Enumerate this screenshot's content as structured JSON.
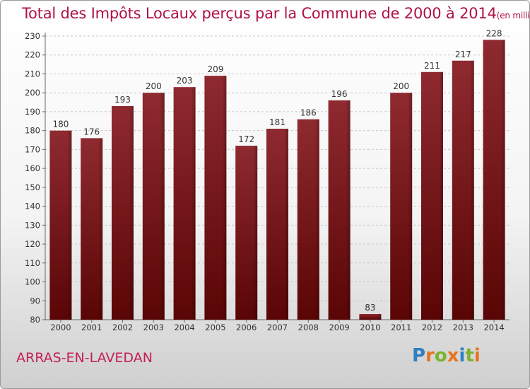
{
  "title": "Total des Impôts Locaux perçus par la Commune de 2000 à 2014",
  "unit": "(en milliers d'€)",
  "commune": "ARRAS-EN-LAVEDAN",
  "logo": {
    "text": "Proxiti",
    "letters": [
      {
        "char": "P",
        "color": "#2f7fc1"
      },
      {
        "char": "r",
        "color": "#e8731e"
      },
      {
        "char": "o",
        "color": "#7bb32e"
      },
      {
        "char": "x",
        "color": "#e8731e"
      },
      {
        "char": "i",
        "color": "#2f7fc1"
      },
      {
        "char": "t",
        "color": "#7bb32e"
      },
      {
        "char": "i",
        "color": "#e8731e"
      }
    ]
  },
  "chart_data": {
    "type": "bar",
    "categories": [
      "2000",
      "2001",
      "2002",
      "2003",
      "2004",
      "2005",
      "2006",
      "2007",
      "2008",
      "2009",
      "2010",
      "2011",
      "2012",
      "2013",
      "2014"
    ],
    "values": [
      180,
      176,
      193,
      200,
      203,
      209,
      172,
      181,
      186,
      196,
      83,
      200,
      211,
      217,
      228
    ],
    "ylim": [
      80,
      230
    ],
    "yticks": [
      80,
      90,
      100,
      110,
      120,
      130,
      140,
      150,
      160,
      170,
      180,
      190,
      200,
      210,
      220,
      230
    ],
    "grid": true,
    "bar_color": "#7a0f14"
  }
}
